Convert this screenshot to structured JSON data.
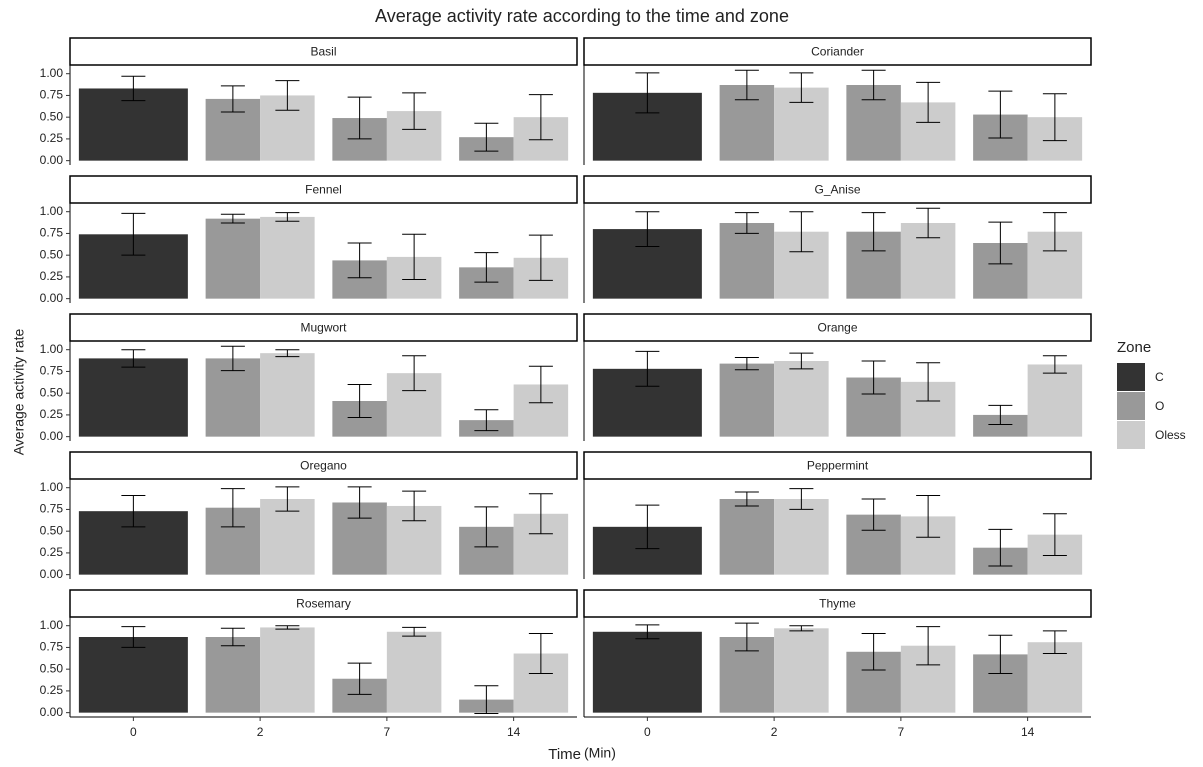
{
  "chart_data": {
    "type": "bar",
    "title": "Average activity rate according to the time and zone",
    "x_label": "Time",
    "x_label_unit": "(Min)",
    "y_label": "Average activity rate",
    "legend_title": "Zone",
    "legend": "right",
    "categories": [
      "0",
      "2",
      "7",
      "14"
    ],
    "ylim": [
      -0.05,
      1.1
    ],
    "yticks": [
      {
        "value": 0,
        "label": "0.00"
      },
      {
        "value": 0.25,
        "label": "0.25"
      },
      {
        "value": 0.5,
        "label": "0.50"
      },
      {
        "value": 0.75,
        "label": "0.75"
      },
      {
        "value": 1,
        "label": "1.00"
      }
    ],
    "series": [
      {
        "name": "C",
        "color": "#333333"
      },
      {
        "name": "O",
        "color": "#999999"
      },
      {
        "name": "Oless",
        "color": "#cccccc"
      }
    ],
    "facets": [
      {
        "title": "Basil",
        "series": [
          {
            "values": [
              0.83,
              null,
              null,
              null
            ],
            "errors": [
              0.14,
              null,
              null,
              null
            ]
          },
          {
            "values": [
              null,
              0.71,
              0.49,
              0.27
            ],
            "errors": [
              null,
              0.15,
              0.24,
              0.16
            ]
          },
          {
            "values": [
              null,
              0.75,
              0.57,
              0.5
            ],
            "errors": [
              null,
              0.17,
              0.21,
              0.26
            ]
          }
        ]
      },
      {
        "title": "Coriander",
        "series": [
          {
            "values": [
              0.78,
              null,
              null,
              null
            ],
            "errors": [
              0.23,
              null,
              null,
              null
            ]
          },
          {
            "values": [
              null,
              0.87,
              0.87,
              0.53
            ],
            "errors": [
              null,
              0.17,
              0.17,
              0.27
            ]
          },
          {
            "values": [
              null,
              0.84,
              0.67,
              0.5
            ],
            "errors": [
              null,
              0.17,
              0.23,
              0.27
            ]
          }
        ]
      },
      {
        "title": "Fennel",
        "series": [
          {
            "values": [
              0.74,
              null,
              null,
              null
            ],
            "errors": [
              0.24,
              null,
              null,
              null
            ]
          },
          {
            "values": [
              null,
              0.92,
              0.44,
              0.36
            ],
            "errors": [
              null,
              0.05,
              0.2,
              0.17
            ]
          },
          {
            "values": [
              null,
              0.94,
              0.48,
              0.47
            ],
            "errors": [
              null,
              0.05,
              0.26,
              0.26
            ]
          }
        ]
      },
      {
        "title": "G_Anise",
        "series": [
          {
            "values": [
              0.8,
              null,
              null,
              null
            ],
            "errors": [
              0.2,
              null,
              null,
              null
            ]
          },
          {
            "values": [
              null,
              0.87,
              0.77,
              0.64
            ],
            "errors": [
              null,
              0.12,
              0.22,
              0.24
            ]
          },
          {
            "values": [
              null,
              0.77,
              0.87,
              0.77
            ],
            "errors": [
              null,
              0.23,
              0.17,
              0.22
            ]
          }
        ]
      },
      {
        "title": "Mugwort",
        "series": [
          {
            "values": [
              0.9,
              null,
              null,
              null
            ],
            "errors": [
              0.1,
              null,
              null,
              null
            ]
          },
          {
            "values": [
              null,
              0.9,
              0.41,
              0.19
            ],
            "errors": [
              null,
              0.14,
              0.19,
              0.12
            ]
          },
          {
            "values": [
              null,
              0.96,
              0.73,
              0.6
            ],
            "errors": [
              null,
              0.04,
              0.2,
              0.21
            ]
          }
        ]
      },
      {
        "title": "Orange",
        "series": [
          {
            "values": [
              0.78,
              null,
              null,
              null
            ],
            "errors": [
              0.2,
              null,
              null,
              null
            ]
          },
          {
            "values": [
              null,
              0.84,
              0.68,
              0.25
            ],
            "errors": [
              null,
              0.07,
              0.19,
              0.11
            ]
          },
          {
            "values": [
              null,
              0.87,
              0.63,
              0.83
            ],
            "errors": [
              null,
              0.09,
              0.22,
              0.1
            ]
          }
        ]
      },
      {
        "title": "Oregano",
        "series": [
          {
            "values": [
              0.73,
              null,
              null,
              null
            ],
            "errors": [
              0.18,
              null,
              null,
              null
            ]
          },
          {
            "values": [
              null,
              0.77,
              0.83,
              0.55
            ],
            "errors": [
              null,
              0.22,
              0.18,
              0.23
            ]
          },
          {
            "values": [
              null,
              0.87,
              0.79,
              0.7
            ],
            "errors": [
              null,
              0.14,
              0.17,
              0.23
            ]
          }
        ]
      },
      {
        "title": "Peppermint",
        "series": [
          {
            "values": [
              0.55,
              null,
              null,
              null
            ],
            "errors": [
              0.25,
              null,
              null,
              null
            ]
          },
          {
            "values": [
              null,
              0.87,
              0.69,
              0.31
            ],
            "errors": [
              null,
              0.08,
              0.18,
              0.21
            ]
          },
          {
            "values": [
              null,
              0.87,
              0.67,
              0.46
            ],
            "errors": [
              null,
              0.12,
              0.24,
              0.24
            ]
          }
        ]
      },
      {
        "title": "Rosemary",
        "series": [
          {
            "values": [
              0.87,
              null,
              null,
              null
            ],
            "errors": [
              0.12,
              null,
              null,
              null
            ]
          },
          {
            "values": [
              null,
              0.87,
              0.39,
              0.15
            ],
            "errors": [
              null,
              0.1,
              0.18,
              0.16
            ]
          },
          {
            "values": [
              null,
              0.98,
              0.93,
              0.68
            ],
            "errors": [
              null,
              0.02,
              0.05,
              0.23
            ]
          }
        ]
      },
      {
        "title": "Thyme",
        "series": [
          {
            "values": [
              0.93,
              null,
              null,
              null
            ],
            "errors": [
              0.08,
              null,
              null,
              null
            ]
          },
          {
            "values": [
              null,
              0.87,
              0.7,
              0.67
            ],
            "errors": [
              null,
              0.16,
              0.21,
              0.22
            ]
          },
          {
            "values": [
              null,
              0.97,
              0.77,
              0.81
            ],
            "errors": [
              null,
              0.03,
              0.22,
              0.13
            ]
          }
        ]
      }
    ]
  }
}
